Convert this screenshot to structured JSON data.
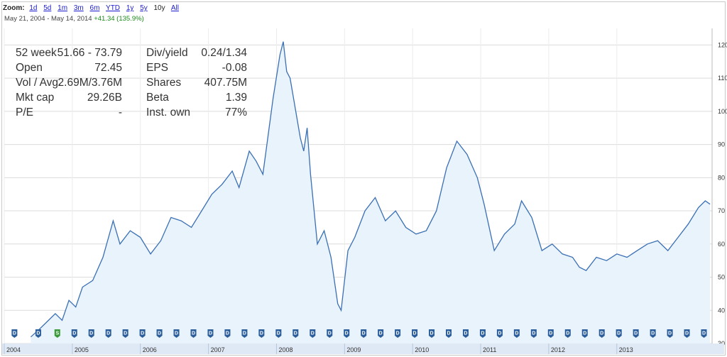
{
  "toolbar": {
    "zoom_label": "Zoom:",
    "zoom_options": [
      "1d",
      "5d",
      "1m",
      "3m",
      "6m",
      "YTD",
      "1y",
      "5y",
      "10y",
      "All"
    ],
    "active_zoom": "10y"
  },
  "range": {
    "dates": "May 21, 2004  -  May 14, 2014",
    "change": "+41.34 (135.9%)"
  },
  "stats": {
    "rows": [
      {
        "label": "52 week",
        "value": "51.66 - 73.79",
        "label2": "Div/yield",
        "value2": "0.24/1.34"
      },
      {
        "label": "Open",
        "value": "72.45",
        "label2": "EPS",
        "value2": "-0.08"
      },
      {
        "label": "Vol / Avg.",
        "value": "2.69M/3.76M",
        "label2": "Shares",
        "value2": "407.75M"
      },
      {
        "label": "Mkt cap",
        "value": "29.26B",
        "label2": "Beta",
        "value2": "1.39"
      },
      {
        "label": "P/E",
        "value": "-",
        "label2": "Inst. own",
        "value2": "77%"
      }
    ]
  },
  "colors": {
    "line": "#3a6fb4",
    "fill": "#e9f3fb",
    "grid": "#dcdcdc",
    "dividend_marker": "#2a5d9a",
    "split_marker": "#3a9a3a",
    "axis_band": "#dfe9f5"
  },
  "chart_data": {
    "type": "area",
    "x_unit": "year",
    "xlim": [
      2004.0,
      2014.4
    ],
    "ylim": [
      30,
      125
    ],
    "grid": true,
    "y_axis_position": "right",
    "y_ticks": [
      30,
      40,
      50,
      60,
      70,
      80,
      90,
      100,
      110,
      120
    ],
    "x_tick_labels": [
      "2004",
      "2005",
      "2006",
      "2007",
      "2008",
      "2009",
      "2010",
      "2011",
      "2012",
      "2013"
    ],
    "x_tick_years": [
      2004,
      2005,
      2006,
      2007,
      2008,
      2009,
      2010,
      2011,
      2012,
      2013
    ],
    "series": [
      {
        "points": [
          [
            2004.39,
            32
          ],
          [
            2004.5,
            34
          ],
          [
            2004.6,
            36
          ],
          [
            2004.75,
            39
          ],
          [
            2004.85,
            37
          ],
          [
            2004.95,
            43
          ],
          [
            2005.05,
            41
          ],
          [
            2005.15,
            47
          ],
          [
            2005.3,
            49
          ],
          [
            2005.45,
            56
          ],
          [
            2005.6,
            67
          ],
          [
            2005.7,
            60
          ],
          [
            2005.85,
            64
          ],
          [
            2006.0,
            62
          ],
          [
            2006.15,
            57
          ],
          [
            2006.3,
            61
          ],
          [
            2006.45,
            68
          ],
          [
            2006.6,
            67
          ],
          [
            2006.75,
            65
          ],
          [
            2006.9,
            70
          ],
          [
            2007.05,
            75
          ],
          [
            2007.2,
            78
          ],
          [
            2007.35,
            82
          ],
          [
            2007.45,
            77
          ],
          [
            2007.6,
            88
          ],
          [
            2007.7,
            85
          ],
          [
            2007.8,
            81
          ],
          [
            2007.95,
            104
          ],
          [
            2008.05,
            117
          ],
          [
            2008.1,
            121
          ],
          [
            2008.15,
            112
          ],
          [
            2008.2,
            110
          ],
          [
            2008.35,
            92
          ],
          [
            2008.4,
            88
          ],
          [
            2008.45,
            95
          ],
          [
            2008.5,
            81
          ],
          [
            2008.6,
            60
          ],
          [
            2008.7,
            64
          ],
          [
            2008.8,
            56
          ],
          [
            2008.9,
            42
          ],
          [
            2008.95,
            40
          ],
          [
            2009.05,
            58
          ],
          [
            2009.15,
            62
          ],
          [
            2009.3,
            70
          ],
          [
            2009.45,
            74
          ],
          [
            2009.6,
            67
          ],
          [
            2009.75,
            70
          ],
          [
            2009.9,
            65
          ],
          [
            2010.05,
            63
          ],
          [
            2010.2,
            64
          ],
          [
            2010.35,
            70
          ],
          [
            2010.5,
            83
          ],
          [
            2010.65,
            91
          ],
          [
            2010.8,
            87
          ],
          [
            2010.95,
            80
          ],
          [
            2011.05,
            72
          ],
          [
            2011.2,
            58
          ],
          [
            2011.35,
            63
          ],
          [
            2011.5,
            66
          ],
          [
            2011.6,
            73
          ],
          [
            2011.75,
            68
          ],
          [
            2011.9,
            58
          ],
          [
            2012.05,
            60
          ],
          [
            2012.2,
            57
          ],
          [
            2012.35,
            56
          ],
          [
            2012.45,
            53
          ],
          [
            2012.55,
            52
          ],
          [
            2012.7,
            56
          ],
          [
            2012.85,
            55
          ],
          [
            2013.0,
            57
          ],
          [
            2013.15,
            56
          ],
          [
            2013.3,
            58
          ],
          [
            2013.45,
            60
          ],
          [
            2013.6,
            61
          ],
          [
            2013.75,
            58
          ],
          [
            2013.9,
            62
          ],
          [
            2014.05,
            66
          ],
          [
            2014.2,
            71
          ],
          [
            2014.3,
            73
          ],
          [
            2014.37,
            72
          ]
        ]
      }
    ],
    "markers": [
      {
        "x": 2004.15,
        "label": "D"
      },
      {
        "x": 2004.5,
        "label": "D"
      },
      {
        "x": 2004.78,
        "label": "S"
      },
      {
        "x": 2005.03,
        "label": "D"
      },
      {
        "x": 2005.28,
        "label": "D"
      },
      {
        "x": 2005.53,
        "label": "D"
      },
      {
        "x": 2005.78,
        "label": "D"
      },
      {
        "x": 2006.03,
        "label": "D"
      },
      {
        "x": 2006.28,
        "label": "D"
      },
      {
        "x": 2006.53,
        "label": "D"
      },
      {
        "x": 2006.78,
        "label": "D"
      },
      {
        "x": 2007.03,
        "label": "D"
      },
      {
        "x": 2007.28,
        "label": "D"
      },
      {
        "x": 2007.53,
        "label": "D"
      },
      {
        "x": 2007.78,
        "label": "D"
      },
      {
        "x": 2008.03,
        "label": "D"
      },
      {
        "x": 2008.28,
        "label": "D"
      },
      {
        "x": 2008.53,
        "label": "D"
      },
      {
        "x": 2008.78,
        "label": "D"
      },
      {
        "x": 2009.03,
        "label": "D"
      },
      {
        "x": 2009.28,
        "label": "D"
      },
      {
        "x": 2009.53,
        "label": "D"
      },
      {
        "x": 2009.78,
        "label": "D"
      },
      {
        "x": 2010.03,
        "label": "D"
      },
      {
        "x": 2010.28,
        "label": "D"
      },
      {
        "x": 2010.53,
        "label": "D"
      },
      {
        "x": 2010.78,
        "label": "D"
      },
      {
        "x": 2011.03,
        "label": "D"
      },
      {
        "x": 2011.28,
        "label": "D"
      },
      {
        "x": 2011.53,
        "label": "D"
      },
      {
        "x": 2011.78,
        "label": "D"
      },
      {
        "x": 2012.03,
        "label": "D"
      },
      {
        "x": 2012.28,
        "label": "D"
      },
      {
        "x": 2012.53,
        "label": "D"
      },
      {
        "x": 2012.78,
        "label": "D"
      },
      {
        "x": 2013.03,
        "label": "D"
      },
      {
        "x": 2013.28,
        "label": "D"
      },
      {
        "x": 2013.53,
        "label": "D"
      },
      {
        "x": 2013.78,
        "label": "D"
      },
      {
        "x": 2014.03,
        "label": "D"
      },
      {
        "x": 2014.28,
        "label": "D"
      }
    ]
  }
}
